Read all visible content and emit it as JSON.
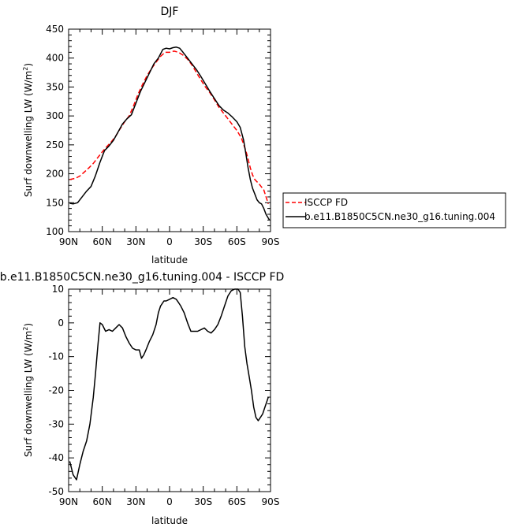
{
  "chart_data": [
    {
      "type": "line",
      "title": "DJF",
      "xlabel": "latitude",
      "ylabel": "Surf downwelling LW (W/m²)",
      "ylabel_main": "Surf downwelling LW (W/m",
      "ylabel_sup": "2",
      "ylabel_end": ")",
      "xlim": [
        90,
        -90
      ],
      "ylim": [
        100,
        450
      ],
      "xticks": [
        90,
        60,
        30,
        0,
        -30,
        -60,
        -90
      ],
      "xtick_labels": [
        "90N",
        "60N",
        "30N",
        "0",
        "30S",
        "60S",
        "90S"
      ],
      "yticks": [
        100,
        150,
        200,
        250,
        300,
        350,
        400,
        450
      ],
      "ytick_labels": [
        "100",
        "150",
        "200",
        "250",
        "300",
        "350",
        "400",
        "450"
      ],
      "legend": {
        "placement": "right",
        "entries": [
          {
            "name": "ISCCP FD",
            "color": "#ff0000",
            "dash": true
          },
          {
            "name": "b.e11.B1850C5CN.ne30_g16.tuning.004",
            "color": "#000000",
            "dash": false
          }
        ]
      },
      "series": [
        {
          "name": "ISCCP FD",
          "color": "#ff0000",
          "dash": true,
          "x": [
            89,
            84,
            80,
            76,
            72,
            68,
            64,
            60,
            56,
            52,
            48,
            44,
            40,
            36,
            32,
            28,
            24,
            20,
            16,
            12,
            8,
            4,
            0,
            -4,
            -8,
            -12,
            -16,
            -20,
            -24,
            -28,
            -32,
            -36,
            -40,
            -44,
            -48,
            -52,
            -56,
            -60,
            -64,
            -68,
            -70,
            -72,
            -74,
            -76,
            -80,
            -84,
            -88
          ],
          "y": [
            190,
            192,
            196,
            203,
            210,
            218,
            228,
            238,
            247,
            255,
            265,
            278,
            290,
            300,
            318,
            338,
            355,
            370,
            382,
            393,
            403,
            410,
            410,
            412,
            410,
            405,
            398,
            388,
            375,
            362,
            350,
            340,
            328,
            315,
            305,
            295,
            285,
            275,
            262,
            240,
            225,
            210,
            198,
            190,
            182,
            172,
            148
          ]
        },
        {
          "name": "b.e11.B1850C5CN.ne30_g16.tuning.004",
          "color": "#000000",
          "dash": false,
          "x": [
            89,
            86,
            82,
            78,
            74,
            70,
            66,
            62,
            58,
            54,
            50,
            46,
            42,
            38,
            34,
            30,
            26,
            22,
            18,
            14,
            10,
            6,
            3,
            0,
            -3,
            -6,
            -9,
            -12,
            -16,
            -20,
            -24,
            -28,
            -32,
            -36,
            -40,
            -44,
            -48,
            -52,
            -56,
            -60,
            -63,
            -66,
            -68,
            -70,
            -72,
            -74,
            -76,
            -78,
            -80,
            -82,
            -84,
            -86,
            -89
          ],
          "y": [
            149,
            148,
            150,
            160,
            170,
            178,
            197,
            220,
            240,
            248,
            258,
            272,
            286,
            295,
            302,
            322,
            342,
            358,
            374,
            390,
            400,
            415,
            417,
            416,
            418,
            419,
            417,
            410,
            400,
            390,
            380,
            368,
            355,
            342,
            330,
            318,
            310,
            305,
            298,
            290,
            280,
            258,
            235,
            210,
            190,
            175,
            165,
            155,
            150,
            148,
            140,
            130,
            120
          ]
        }
      ]
    },
    {
      "type": "line",
      "title": "b.e11.B1850C5CN.ne30_g16.tuning.004 - ISCCP FD",
      "xlabel": "latitude",
      "ylabel": "Surf downwelling LW (W/m²)",
      "ylabel_main": "Surf downwelling LW (W/m",
      "ylabel_sup": "2",
      "ylabel_end": ")",
      "xlim": [
        90,
        -90
      ],
      "ylim": [
        -50,
        10
      ],
      "xticks": [
        90,
        60,
        30,
        0,
        -30,
        -60,
        -90
      ],
      "xtick_labels": [
        "90N",
        "60N",
        "30N",
        "0",
        "30S",
        "60S",
        "90S"
      ],
      "yticks": [
        -50,
        -40,
        -30,
        -20,
        -10,
        0,
        10
      ],
      "ytick_labels": [
        "-50",
        "-40",
        "-30",
        "-20",
        "-10",
        "0",
        "10"
      ],
      "series": [
        {
          "name": "",
          "color": "#000000",
          "dash": false,
          "x": [
            89,
            86,
            83,
            80,
            77,
            74,
            71,
            68,
            66,
            64,
            62,
            60,
            57,
            54,
            51,
            48,
            45,
            42,
            39,
            36,
            33,
            30,
            27,
            25,
            23,
            21,
            18,
            15,
            12,
            10,
            8,
            5,
            3,
            0,
            -3,
            -6,
            -8,
            -10,
            -13,
            -16,
            -19,
            -22,
            -25,
            -28,
            -31,
            -34,
            -37,
            -40,
            -43,
            -46,
            -49,
            -52,
            -55,
            -58,
            -61,
            -63,
            -65,
            -67,
            -69,
            -71,
            -73,
            -75,
            -77,
            -79,
            -81,
            -83,
            -85,
            -88
          ],
          "y": [
            -41,
            -45,
            -46.5,
            -42,
            -38,
            -35,
            -30,
            -22,
            -15,
            -7,
            0,
            -0.5,
            -2.5,
            -2,
            -2.5,
            -1.5,
            -0.5,
            -1.5,
            -4,
            -6,
            -7.5,
            -8,
            -8,
            -10.5,
            -9.5,
            -8,
            -5.5,
            -3.5,
            -0.5,
            3,
            5,
            6.5,
            6.5,
            7,
            7.5,
            7,
            6,
            5,
            3,
            0,
            -2.5,
            -2.5,
            -2.5,
            -2,
            -1.5,
            -2.5,
            -3,
            -2,
            -0.5,
            2,
            5,
            8,
            9.5,
            10,
            10,
            9,
            2,
            -7,
            -12,
            -16,
            -20,
            -25,
            -28,
            -29,
            -28,
            -27,
            -25,
            -22
          ]
        }
      ]
    }
  ]
}
